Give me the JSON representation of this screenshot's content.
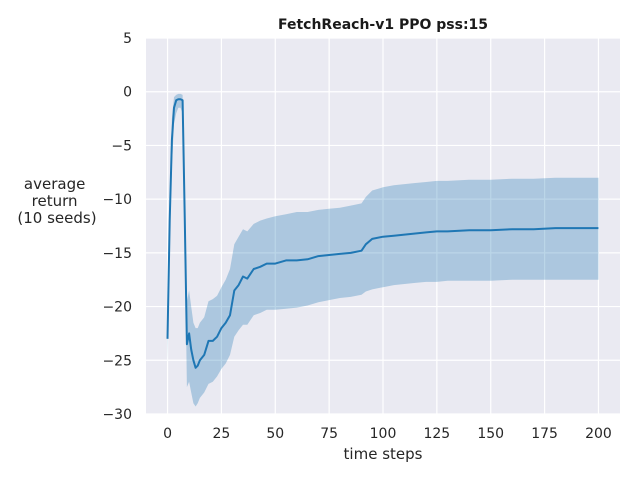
{
  "chart_data": {
    "type": "line",
    "title": "FetchReach-v1 PPO pss:15",
    "xlabel": "time steps",
    "ylabel_lines": [
      "average",
      "return",
      "(10 seeds)"
    ],
    "xlim": [
      -10,
      210
    ],
    "ylim": [
      -30,
      5
    ],
    "xticks": [
      0,
      25,
      50,
      75,
      100,
      125,
      150,
      175,
      200
    ],
    "yticks": [
      5,
      0,
      -5,
      -10,
      -15,
      -20,
      -25,
      -30
    ],
    "ytick_labels": [
      "5",
      "0",
      "−5",
      "−10",
      "−15",
      "−20",
      "−25",
      "−30"
    ],
    "grid": true,
    "colors": {
      "background": "#eaeaf2",
      "grid": "#ffffff",
      "line": "#1f77b4",
      "band": "#1f77b4"
    },
    "series": [
      {
        "x": [
          0,
          1,
          2,
          3,
          4,
          5,
          6,
          7,
          8,
          9,
          10,
          11,
          12,
          13,
          14,
          15,
          17,
          19,
          21,
          23,
          25,
          27,
          29,
          31,
          33,
          35,
          37,
          40,
          43,
          46,
          50,
          55,
          60,
          65,
          70,
          75,
          80,
          85,
          90,
          92,
          95,
          100,
          105,
          110,
          115,
          120,
          125,
          130,
          140,
          150,
          160,
          170,
          180,
          190,
          200
        ],
        "y": [
          -23,
          -12,
          -4.5,
          -1.5,
          -0.8,
          -0.7,
          -0.7,
          -0.8,
          -12,
          -23.5,
          -22.5,
          -24,
          -25,
          -25.7,
          -25.5,
          -25,
          -24.5,
          -23.2,
          -23.2,
          -22.8,
          -22,
          -21.5,
          -20.8,
          -18.5,
          -18,
          -17.2,
          -17.4,
          -16.5,
          -16.3,
          -16,
          -16,
          -15.7,
          -15.7,
          -15.6,
          -15.3,
          -15.2,
          -15.1,
          -15.0,
          -14.8,
          -14.2,
          -13.7,
          -13.5,
          -13.4,
          -13.3,
          -13.2,
          -13.1,
          -13.0,
          -13.0,
          -12.9,
          -12.9,
          -12.8,
          -12.8,
          -12.7,
          -12.7,
          -12.7
        ],
        "lower": [
          -25.3,
          -14,
          -7,
          -3,
          -2,
          -1.5,
          -1.5,
          -2,
          -14,
          -27.5,
          -27,
          -28,
          -29,
          -29.3,
          -29,
          -28.5,
          -28,
          -27.2,
          -27,
          -26.5,
          -25.8,
          -25.3,
          -24.5,
          -22.8,
          -22.2,
          -21.7,
          -21.7,
          -20.8,
          -20.6,
          -20.3,
          -20.3,
          -20.2,
          -20.1,
          -19.9,
          -19.6,
          -19.4,
          -19.2,
          -19.1,
          -18.9,
          -18.6,
          -18.4,
          -18.2,
          -18.0,
          -17.9,
          -17.8,
          -17.7,
          -17.7,
          -17.6,
          -17.6,
          -17.6,
          -17.5,
          -17.5,
          -17.5,
          -17.5,
          -17.5
        ],
        "upper": [
          -20.5,
          -10,
          -2.5,
          -0.5,
          -0.3,
          -0.2,
          -0.2,
          -0.3,
          -10,
          -19.5,
          -18.5,
          -20,
          -21.5,
          -22,
          -22,
          -21.5,
          -21,
          -19.5,
          -19.3,
          -19,
          -18.2,
          -17.5,
          -16.5,
          -14.2,
          -13.5,
          -12.8,
          -13,
          -12.3,
          -12.0,
          -11.8,
          -11.6,
          -11.4,
          -11.2,
          -11.2,
          -11.0,
          -10.9,
          -10.8,
          -10.6,
          -10.4,
          -9.8,
          -9.2,
          -8.9,
          -8.7,
          -8.6,
          -8.5,
          -8.4,
          -8.3,
          -8.3,
          -8.2,
          -8.2,
          -8.1,
          -8.1,
          -8.0,
          -8.0,
          -8.0
        ]
      }
    ]
  }
}
